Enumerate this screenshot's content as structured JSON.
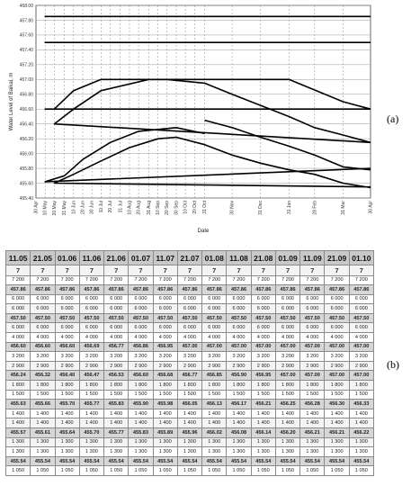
{
  "panel_labels": {
    "a": "(a)",
    "b": "(b)"
  },
  "chart_data": {
    "type": "line",
    "title": "",
    "xlabel": "Date",
    "ylabel": "Water Level of Baikal, m",
    "ylim": [
      455.4,
      458.0
    ],
    "yticks": [
      455.4,
      455.6,
      455.8,
      456.0,
      456.2,
      456.4,
      456.6,
      456.8,
      457.0,
      457.2,
      457.4,
      457.6,
      457.8,
      458.0
    ],
    "ytick_labels": [
      "455.40",
      "455.60",
      "455.80",
      "456.00",
      "456.20",
      "456.40",
      "456.60",
      "456.80",
      "457.00",
      "457.20",
      "457.40",
      "457.60",
      "457.80",
      "458.00"
    ],
    "x_categories": [
      "30 Apr",
      "10 May",
      "20 May",
      "31 May",
      "10 Jun",
      "20 Jun",
      "30 Jun",
      "10 Jul",
      "20 Jul",
      "31 Jul",
      "10 Aug",
      "20 Aug",
      "31 Aug",
      "10 Sep",
      "20 Sep",
      "30 Sep",
      "10 Oct",
      "20 Oct",
      "31 Oct",
      "30 Nov",
      "31 Dec",
      "31 Jan",
      "28 Feb",
      "31 Mar",
      "30 Apr"
    ],
    "x_day_offsets": [
      0,
      10,
      20,
      31,
      41,
      51,
      61,
      71,
      81,
      92,
      102,
      112,
      123,
      133,
      143,
      153,
      163,
      173,
      184,
      214,
      245,
      276,
      304,
      335,
      365
    ],
    "dashed_vertical_gridlines": true,
    "legend": "none",
    "series": [
      {
        "x": [
          "30 Apr",
          "10 May",
          "20 May",
          "31 May",
          "10 Jun",
          "20 Jun",
          "30 Jun",
          "10 Jul",
          "20 Jul",
          "31 Jul",
          "10 Aug",
          "20 Aug",
          "31 Aug",
          "10 Sep",
          "20 Sep",
          "30 Sep",
          "10 Oct",
          "20 Oct",
          "31 Oct",
          "30 Nov",
          "31 Dec",
          "31 Jan",
          "28 Feb",
          "31 Mar",
          "30 Apr"
        ],
        "y": [
          457.85,
          457.85,
          457.85,
          457.85,
          457.85,
          457.85,
          457.85,
          457.85,
          457.85,
          457.85,
          457.85,
          457.85,
          457.85,
          457.85,
          457.85,
          457.85,
          457.85,
          457.85,
          457.85,
          457.85,
          457.85,
          457.85,
          457.85,
          457.85,
          457.85
        ]
      },
      {
        "x": [
          "30 Apr",
          "10 May",
          "20 May",
          "31 May",
          "10 Jun",
          "20 Jun",
          "30 Jun",
          "10 Jul",
          "20 Jul",
          "31 Jul",
          "10 Aug",
          "20 Aug",
          "31 Aug",
          "10 Sep",
          "20 Sep",
          "30 Sep",
          "10 Oct",
          "20 Oct",
          "31 Oct",
          "30 Nov",
          "31 Dec",
          "31 Jan",
          "28 Feb",
          "31 Mar",
          "30 Apr"
        ],
        "y": [
          457.5,
          457.5,
          457.5,
          457.5,
          457.5,
          457.5,
          457.5,
          457.5,
          457.5,
          457.5,
          457.5,
          457.5,
          457.5,
          457.5,
          457.5,
          457.5,
          457.5,
          457.5,
          457.5,
          457.5,
          457.5,
          457.5,
          457.5,
          457.5,
          457.5
        ]
      },
      {
        "x": [
          "30 Apr",
          "10 May",
          "20 May",
          "10 Jun",
          "10 Jul",
          "31 Jul",
          "31 Aug",
          "30 Sep",
          "31 Oct",
          "31 Dec",
          "31 Jan",
          "31 Mar",
          "30 Apr"
        ],
        "y": [
          456.6,
          456.6,
          456.6,
          456.85,
          457.0,
          457.0,
          457.0,
          457.0,
          457.0,
          457.0,
          457.0,
          456.7,
          456.6
        ]
      },
      {
        "x": [
          "30 Apr",
          "20 May",
          "10 Jun",
          "10 Jul",
          "31 Aug",
          "20 Sep",
          "31 Oct",
          "30 Nov",
          "31 Dec",
          "31 Jan",
          "28 Feb",
          "31 Mar",
          "30 Apr"
        ],
        "y": [
          456.15,
          456.4,
          456.6,
          456.85,
          457.0,
          457.0,
          456.95,
          456.8,
          456.65,
          456.5,
          456.35,
          456.25,
          456.15
        ]
      },
      {
        "x": [
          "30 Apr",
          "10 May",
          "31 May",
          "20 Jun",
          "20 Jul",
          "20 Aug",
          "30 Sep",
          "31 Oct"
        ],
        "y": [
          455.8,
          455.62,
          455.7,
          455.92,
          456.15,
          456.3,
          456.35,
          456.27
        ]
      },
      {
        "x": [
          "31 Oct",
          "30 Nov",
          "31 Dec",
          "31 Jan",
          "28 Feb",
          "31 Mar",
          "30 Apr"
        ],
        "y": [
          456.45,
          456.35,
          456.22,
          456.1,
          455.98,
          455.82,
          455.78
        ]
      },
      {
        "x": [
          "30 Apr",
          "20 May",
          "10 Jun",
          "10 Jul",
          "10 Aug",
          "10 Sep",
          "30 Sep",
          "31 Oct",
          "30 Nov",
          "31 Dec",
          "31 Jan",
          "28 Feb",
          "31 Mar",
          "30 Apr"
        ],
        "y": [
          455.55,
          455.6,
          455.72,
          455.9,
          456.08,
          456.2,
          456.22,
          456.12,
          455.98,
          455.87,
          455.78,
          455.72,
          455.6,
          455.54
        ]
      }
    ]
  },
  "table": {
    "headers": [
      "11.05",
      "21.05",
      "01.06",
      "11.06",
      "21.06",
      "01.07",
      "11.07",
      "21.07",
      "01.08",
      "11.08",
      "21.08",
      "01.09",
      "11.09",
      "21.09",
      "01.10"
    ],
    "subrow": [
      "7",
      "7",
      "7",
      "7",
      "7",
      "7",
      "7",
      "7",
      "7",
      "7",
      "7",
      "7",
      "7",
      "7",
      "7"
    ],
    "rows": [
      {
        "highlight": false,
        "cells": [
          "7 200",
          "7 200",
          "7 200",
          "7 200",
          "7 200",
          "7 200",
          "7 200",
          "7 200",
          "7 200",
          "7 200",
          "7 200",
          "7 200",
          "7 200",
          "7 200",
          "7 200"
        ]
      },
      {
        "highlight": true,
        "cells": [
          "457.86",
          "457.86",
          "457.86",
          "457.86",
          "457.86",
          "457.86",
          "457.86",
          "457.86",
          "457.86",
          "457.86",
          "457.86",
          "457.86",
          "457.86",
          "457.86",
          "457.86"
        ]
      },
      {
        "highlight": false,
        "cells": [
          "6 000",
          "6 000",
          "6 000",
          "6 000",
          "6 000",
          "6 000",
          "6 000",
          "6 000",
          "6 000",
          "6 000",
          "6 000",
          "6 000",
          "6 000",
          "6 000",
          "6 000"
        ]
      },
      {
        "highlight": false,
        "cells": [
          "6 000",
          "6 000",
          "6 000",
          "6 000",
          "6 000",
          "6 000",
          "6 000",
          "6 000",
          "6 000",
          "6 000",
          "6 000",
          "6 000",
          "6 000",
          "6 000",
          "6 000"
        ]
      },
      {
        "highlight": true,
        "cells": [
          "457.50",
          "457.50",
          "457.50",
          "457.50",
          "457.50",
          "457.50",
          "457.50",
          "457.50",
          "457.50",
          "457.50",
          "457.50",
          "457.50",
          "457.50",
          "457.50",
          "457.50"
        ]
      },
      {
        "highlight": false,
        "cells": [
          "6 000",
          "6 000",
          "6 000",
          "6 000",
          "6 000",
          "6 000",
          "6 000",
          "6 000",
          "6 000",
          "6 000",
          "6 000",
          "6 000",
          "6 000",
          "6 000",
          "6 000"
        ]
      },
      {
        "highlight": false,
        "cells": [
          "4 000",
          "4 000",
          "4 000",
          "4 000",
          "4 000",
          "4 000",
          "4 000",
          "4 000",
          "4 000",
          "4 000",
          "4 000",
          "4 000",
          "4 000",
          "4 000",
          "4 000"
        ]
      },
      {
        "highlight": true,
        "cells": [
          "456.60",
          "456.60",
          "456.60",
          "456.69",
          "456.77",
          "456.86",
          "456.95",
          "457.00",
          "457.00",
          "457.00",
          "457.00",
          "457.00",
          "457.00",
          "457.00",
          "457.00"
        ]
      },
      {
        "highlight": false,
        "cells": [
          "3 200",
          "3 200",
          "3 200",
          "3 200",
          "3 200",
          "3 200",
          "3 200",
          "3 200",
          "3 200",
          "3 200",
          "3 200",
          "3 200",
          "3 200",
          "3 200",
          "3 200"
        ]
      },
      {
        "highlight": false,
        "cells": [
          "2 900",
          "2 900",
          "2 900",
          "2 900",
          "2 900",
          "2 900",
          "2 900",
          "2 900",
          "2 900",
          "2 900",
          "2 900",
          "2 900",
          "2 900",
          "2 900",
          "2 900"
        ]
      },
      {
        "highlight": true,
        "cells": [
          "456.24",
          "456.32",
          "456.40",
          "456.47",
          "456.53",
          "456.60",
          "456.68",
          "456.77",
          "456.85",
          "456.90",
          "456.95",
          "457.00",
          "457.00",
          "457.00",
          "457.00"
        ]
      },
      {
        "highlight": false,
        "cells": [
          "1 800",
          "1 800",
          "1 800",
          "1 800",
          "1 800",
          "1 800",
          "1 800",
          "1 800",
          "1 800",
          "1 800",
          "1 800",
          "1 800",
          "1 800",
          "1 800",
          "1 800"
        ]
      },
      {
        "highlight": false,
        "cells": [
          "1 500",
          "1 500",
          "1 500",
          "1 500",
          "1 500",
          "1 500",
          "1 500",
          "1 500",
          "1 500",
          "1 500",
          "1 500",
          "1 500",
          "1 500",
          "1 500",
          "1 500"
        ]
      },
      {
        "highlight": true,
        "cells": [
          "455.63",
          "455.66",
          "455.70",
          "455.77",
          "455.83",
          "455.90",
          "455.98",
          "456.05",
          "456.13",
          "456.17",
          "456.21",
          "456.25",
          "456.28",
          "456.30",
          "456.33"
        ]
      },
      {
        "highlight": false,
        "cells": [
          "1 400",
          "1 400",
          "1 400",
          "1 400",
          "1 400",
          "1 400",
          "1 400",
          "1 400",
          "1 400",
          "1 400",
          "1 400",
          "1 400",
          "1 400",
          "1 400",
          "1 400"
        ]
      },
      {
        "highlight": false,
        "cells": [
          "1 400",
          "1 400",
          "1 400",
          "1 400",
          "1 400",
          "1 400",
          "1 400",
          "1 400",
          "1 400",
          "1 400",
          "1 400",
          "1 400",
          "1 400",
          "1 400",
          "1 400"
        ]
      },
      {
        "highlight": true,
        "cells": [
          "455.57",
          "455.61",
          "455.64",
          "455.70",
          "455.77",
          "455.83",
          "455.89",
          "455.96",
          "456.02",
          "456.08",
          "456.14",
          "456.20",
          "456.21",
          "456.21",
          "456.22"
        ]
      },
      {
        "highlight": false,
        "cells": [
          "1 300",
          "1 300",
          "1 300",
          "1 300",
          "1 300",
          "1 300",
          "1 300",
          "1 300",
          "1 300",
          "1 300",
          "1 300",
          "1 300",
          "1 300",
          "1 300",
          "1 300"
        ]
      },
      {
        "highlight": false,
        "cells": [
          "1 300",
          "1 300",
          "1 300",
          "1 300",
          "1 300",
          "1 300",
          "1 300",
          "1 300",
          "1 300",
          "1 300",
          "1 300",
          "1 300",
          "1 300",
          "1 300",
          "1 300"
        ]
      },
      {
        "highlight": true,
        "cells": [
          "455.54",
          "455.54",
          "455.54",
          "455.54",
          "455.54",
          "455.54",
          "455.54",
          "455.54",
          "455.54",
          "455.54",
          "455.54",
          "455.54",
          "455.54",
          "455.54",
          "455.54"
        ]
      },
      {
        "highlight": false,
        "cells": [
          "1 050",
          "1 050",
          "1 050",
          "1 050",
          "1 050",
          "1 050",
          "1 050",
          "1 050",
          "1 050",
          "1 050",
          "1 050",
          "1 050",
          "1 050",
          "1 050",
          "1 050"
        ]
      }
    ]
  }
}
